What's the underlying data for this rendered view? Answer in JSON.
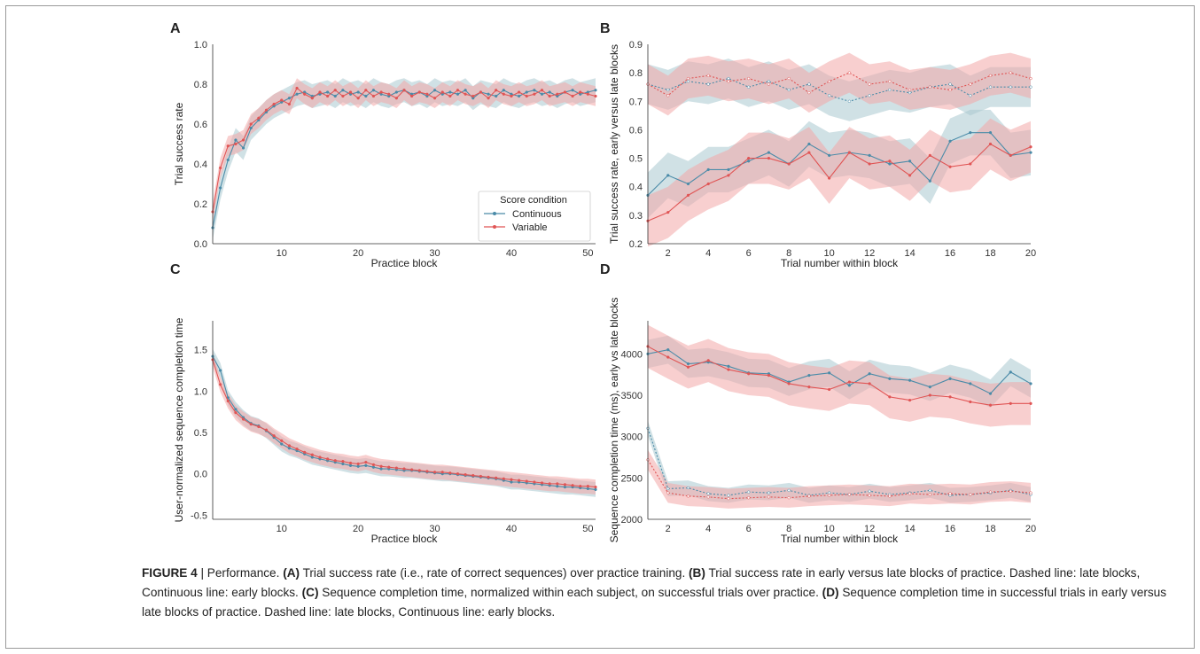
{
  "colors": {
    "continuous": "#4a8ba8",
    "continuous_band": "#a9c8d0",
    "variable": "#e05555",
    "variable_band": "#f2a8a8",
    "axis": "#333333"
  },
  "panels": {
    "A": "A",
    "B": "B",
    "C": "C",
    "D": "D"
  },
  "caption": {
    "figure_label": "FIGURE 4",
    "separator": "|",
    "title": "Performance.",
    "a_label": "(A)",
    "a_text": "Trial success rate (i.e., rate of correct sequences) over practice training.",
    "b_label": "(B)",
    "b_text": "Trial success rate in early versus late blocks of practice. Dashed line: late blocks, Continuous line: early blocks.",
    "c_label": "(C)",
    "c_text": "Sequence completion time, normalized within each subject, on successful trials over practice.",
    "d_label": "(D)",
    "d_text": "Sequence completion time in successful trials in early versus late blocks of practice. Dashed line: late blocks, Continuous line: early blocks."
  },
  "chart_data": [
    {
      "panel": "A",
      "type": "line",
      "xlabel": "Practice block",
      "ylabel": "Trial success rate",
      "xlim": [
        1,
        51
      ],
      "ylim": [
        0.0,
        1.0
      ],
      "xticks": [
        10,
        20,
        30,
        40,
        50
      ],
      "yticks": [
        0.0,
        0.2,
        0.4,
        0.6,
        0.8,
        1.0
      ],
      "ytick_labels": [
        "0.0",
        "0.2",
        "0.4",
        "0.6",
        "0.8",
        "1.0"
      ],
      "legend": {
        "title": "Score condition",
        "position": "lower-right"
      },
      "series": [
        {
          "name": "Continuous",
          "color_key": "continuous",
          "style": "solid",
          "x": [
            1,
            2,
            3,
            4,
            5,
            6,
            7,
            8,
            9,
            10,
            11,
            12,
            13,
            14,
            15,
            16,
            17,
            18,
            19,
            20,
            21,
            22,
            23,
            24,
            25,
            26,
            27,
            28,
            29,
            30,
            31,
            32,
            33,
            34,
            35,
            36,
            37,
            38,
            39,
            40,
            41,
            42,
            43,
            44,
            45,
            46,
            47,
            48,
            49,
            50,
            51
          ],
          "y": [
            0.08,
            0.28,
            0.42,
            0.52,
            0.48,
            0.58,
            0.62,
            0.66,
            0.69,
            0.71,
            0.73,
            0.75,
            0.76,
            0.74,
            0.75,
            0.76,
            0.74,
            0.77,
            0.75,
            0.76,
            0.74,
            0.77,
            0.75,
            0.74,
            0.76,
            0.77,
            0.75,
            0.76,
            0.74,
            0.77,
            0.75,
            0.76,
            0.75,
            0.77,
            0.73,
            0.76,
            0.75,
            0.74,
            0.77,
            0.75,
            0.74,
            0.76,
            0.77,
            0.75,
            0.76,
            0.74,
            0.76,
            0.77,
            0.75,
            0.76,
            0.77
          ],
          "band": 0.06
        },
        {
          "name": "Variable",
          "color_key": "variable",
          "style": "solid",
          "x": [
            1,
            2,
            3,
            4,
            5,
            6,
            7,
            8,
            9,
            10,
            11,
            12,
            13,
            14,
            15,
            16,
            17,
            18,
            19,
            20,
            21,
            22,
            23,
            24,
            25,
            26,
            27,
            28,
            29,
            30,
            31,
            32,
            33,
            34,
            35,
            36,
            37,
            38,
            39,
            40,
            41,
            42,
            43,
            44,
            45,
            46,
            47,
            48,
            49,
            50,
            51
          ],
          "y": [
            0.16,
            0.38,
            0.49,
            0.5,
            0.52,
            0.6,
            0.63,
            0.67,
            0.7,
            0.72,
            0.7,
            0.78,
            0.75,
            0.73,
            0.76,
            0.74,
            0.77,
            0.74,
            0.76,
            0.73,
            0.77,
            0.74,
            0.76,
            0.75,
            0.73,
            0.77,
            0.74,
            0.76,
            0.75,
            0.73,
            0.76,
            0.74,
            0.77,
            0.75,
            0.74,
            0.76,
            0.73,
            0.77,
            0.75,
            0.74,
            0.76,
            0.74,
            0.75,
            0.77,
            0.74,
            0.75,
            0.76,
            0.74,
            0.76,
            0.75,
            0.74
          ],
          "band": 0.05
        }
      ]
    },
    {
      "panel": "B",
      "type": "line",
      "xlabel": "Trial number within block",
      "ylabel": "Trial success rate, early versus late blocks",
      "xlim": [
        1,
        20
      ],
      "ylim": [
        0.2,
        0.9
      ],
      "xticks": [
        2,
        4,
        6,
        8,
        10,
        12,
        14,
        16,
        18,
        20
      ],
      "yticks": [
        0.2,
        0.3,
        0.4,
        0.5,
        0.6,
        0.7,
        0.8,
        0.9
      ],
      "ytick_labels": [
        "0.2",
        "0.3",
        "0.4",
        "0.5",
        "0.6",
        "0.7",
        "0.8",
        "0.9"
      ],
      "series": [
        {
          "name": "Continuous",
          "color_key": "continuous",
          "style": "dashed",
          "x": [
            1,
            2,
            3,
            4,
            5,
            6,
            7,
            8,
            9,
            10,
            11,
            12,
            13,
            14,
            15,
            16,
            17,
            18,
            19,
            20
          ],
          "y": [
            0.76,
            0.74,
            0.77,
            0.76,
            0.78,
            0.75,
            0.77,
            0.74,
            0.76,
            0.72,
            0.7,
            0.72,
            0.74,
            0.73,
            0.75,
            0.76,
            0.72,
            0.75,
            0.75,
            0.75
          ],
          "band": 0.07
        },
        {
          "name": "Variable",
          "color_key": "variable",
          "style": "dashed",
          "x": [
            1,
            2,
            3,
            4,
            5,
            6,
            7,
            8,
            9,
            10,
            11,
            12,
            13,
            14,
            15,
            16,
            17,
            18,
            19,
            20
          ],
          "y": [
            0.76,
            0.72,
            0.78,
            0.79,
            0.77,
            0.78,
            0.76,
            0.78,
            0.73,
            0.77,
            0.8,
            0.76,
            0.77,
            0.74,
            0.75,
            0.74,
            0.76,
            0.79,
            0.8,
            0.78
          ],
          "band": 0.07
        },
        {
          "name": "Continuous",
          "color_key": "continuous",
          "style": "solid",
          "x": [
            1,
            2,
            3,
            4,
            5,
            6,
            7,
            8,
            9,
            10,
            11,
            12,
            13,
            14,
            15,
            16,
            17,
            18,
            19,
            20
          ],
          "y": [
            0.37,
            0.44,
            0.41,
            0.46,
            0.46,
            0.49,
            0.52,
            0.48,
            0.55,
            0.51,
            0.52,
            0.51,
            0.48,
            0.49,
            0.42,
            0.56,
            0.59,
            0.59,
            0.51,
            0.52
          ],
          "band": 0.08
        },
        {
          "name": "Variable",
          "color_key": "variable",
          "style": "solid",
          "x": [
            1,
            2,
            3,
            4,
            5,
            6,
            7,
            8,
            9,
            10,
            11,
            12,
            13,
            14,
            15,
            16,
            17,
            18,
            19,
            20
          ],
          "y": [
            0.28,
            0.31,
            0.37,
            0.41,
            0.44,
            0.5,
            0.5,
            0.48,
            0.52,
            0.43,
            0.52,
            0.48,
            0.49,
            0.44,
            0.51,
            0.47,
            0.48,
            0.55,
            0.51,
            0.54
          ],
          "band": 0.09
        }
      ]
    },
    {
      "panel": "C",
      "type": "line",
      "xlabel": "Practice block",
      "ylabel": "User-normalized sequence completion time",
      "xlim": [
        1,
        51
      ],
      "ylim": [
        -0.55,
        1.85
      ],
      "xticks": [
        10,
        20,
        30,
        40,
        50
      ],
      "yticks": [
        -0.5,
        0.0,
        0.5,
        1.0,
        1.5
      ],
      "ytick_labels": [
        "-0.5",
        "0.0",
        "0.5",
        "1.0",
        "1.5"
      ],
      "series": [
        {
          "name": "Continuous",
          "color_key": "continuous",
          "style": "solid",
          "x": [
            1,
            2,
            3,
            4,
            5,
            6,
            7,
            8,
            9,
            10,
            11,
            12,
            13,
            14,
            15,
            16,
            17,
            18,
            19,
            20,
            21,
            22,
            23,
            24,
            25,
            26,
            27,
            28,
            29,
            30,
            31,
            32,
            33,
            34,
            35,
            36,
            37,
            38,
            39,
            40,
            41,
            42,
            43,
            44,
            45,
            46,
            47,
            48,
            49,
            50,
            51
          ],
          "y": [
            1.42,
            1.25,
            0.92,
            0.78,
            0.68,
            0.61,
            0.58,
            0.52,
            0.44,
            0.36,
            0.31,
            0.28,
            0.24,
            0.2,
            0.18,
            0.16,
            0.14,
            0.12,
            0.1,
            0.09,
            0.1,
            0.08,
            0.06,
            0.06,
            0.05,
            0.04,
            0.04,
            0.03,
            0.02,
            0.01,
            0.0,
            0.0,
            -0.01,
            -0.02,
            -0.03,
            -0.04,
            -0.05,
            -0.06,
            -0.08,
            -0.1,
            -0.1,
            -0.11,
            -0.12,
            -0.13,
            -0.14,
            -0.15,
            -0.16,
            -0.16,
            -0.17,
            -0.18,
            -0.19
          ],
          "band": 0.09
        },
        {
          "name": "Variable",
          "color_key": "variable",
          "style": "solid",
          "x": [
            1,
            2,
            3,
            4,
            5,
            6,
            7,
            8,
            9,
            10,
            11,
            12,
            13,
            14,
            15,
            16,
            17,
            18,
            19,
            20,
            21,
            22,
            23,
            24,
            25,
            26,
            27,
            28,
            29,
            30,
            31,
            32,
            33,
            34,
            35,
            36,
            37,
            38,
            39,
            40,
            41,
            42,
            43,
            44,
            45,
            46,
            47,
            48,
            49,
            50,
            51
          ],
          "y": [
            1.38,
            1.08,
            0.88,
            0.74,
            0.66,
            0.6,
            0.57,
            0.53,
            0.46,
            0.4,
            0.34,
            0.3,
            0.26,
            0.23,
            0.2,
            0.18,
            0.16,
            0.15,
            0.13,
            0.12,
            0.14,
            0.11,
            0.09,
            0.08,
            0.07,
            0.06,
            0.05,
            0.04,
            0.03,
            0.02,
            0.02,
            0.01,
            0.0,
            -0.01,
            -0.02,
            -0.03,
            -0.04,
            -0.05,
            -0.06,
            -0.07,
            -0.08,
            -0.09,
            -0.1,
            -0.11,
            -0.12,
            -0.12,
            -0.13,
            -0.14,
            -0.15,
            -0.15,
            -0.16
          ],
          "band": 0.09
        }
      ]
    },
    {
      "panel": "D",
      "type": "line",
      "xlabel": "Trial number within block",
      "ylabel": "Sequence completion time (ms), early vs late blocks",
      "xlim": [
        1,
        20
      ],
      "ylim": [
        2000,
        4400
      ],
      "xticks": [
        2,
        4,
        6,
        8,
        10,
        12,
        14,
        16,
        18,
        20
      ],
      "yticks": [
        2000,
        2500,
        3000,
        3500,
        4000
      ],
      "ytick_labels": [
        "2000",
        "2500",
        "3000",
        "3500",
        "4000"
      ],
      "series": [
        {
          "name": "Continuous",
          "color_key": "continuous",
          "style": "solid",
          "x": [
            1,
            2,
            3,
            4,
            5,
            6,
            7,
            8,
            9,
            10,
            11,
            12,
            13,
            14,
            15,
            16,
            17,
            18,
            19,
            20
          ],
          "y": [
            4000,
            4050,
            3880,
            3900,
            3850,
            3770,
            3760,
            3660,
            3740,
            3770,
            3620,
            3760,
            3700,
            3680,
            3600,
            3700,
            3640,
            3520,
            3780,
            3640
          ],
          "band": 170
        },
        {
          "name": "Variable",
          "color_key": "variable",
          "style": "solid",
          "x": [
            1,
            2,
            3,
            4,
            5,
            6,
            7,
            8,
            9,
            10,
            11,
            12,
            13,
            14,
            15,
            16,
            17,
            18,
            19,
            20
          ],
          "y": [
            4090,
            3960,
            3840,
            3920,
            3810,
            3760,
            3740,
            3640,
            3600,
            3570,
            3660,
            3640,
            3480,
            3440,
            3500,
            3480,
            3420,
            3380,
            3400,
            3400
          ],
          "band": 260
        },
        {
          "name": "Continuous",
          "color_key": "continuous",
          "style": "dashed",
          "x": [
            1,
            2,
            3,
            4,
            5,
            6,
            7,
            8,
            9,
            10,
            11,
            12,
            13,
            14,
            15,
            16,
            17,
            18,
            19,
            20
          ],
          "y": [
            3100,
            2370,
            2380,
            2310,
            2290,
            2330,
            2320,
            2350,
            2290,
            2320,
            2300,
            2340,
            2300,
            2320,
            2350,
            2290,
            2300,
            2320,
            2350,
            2300
          ],
          "band": 90
        },
        {
          "name": "Variable",
          "color_key": "variable",
          "style": "dashed",
          "x": [
            1,
            2,
            3,
            4,
            5,
            6,
            7,
            8,
            9,
            10,
            11,
            12,
            13,
            14,
            15,
            16,
            17,
            18,
            19,
            20
          ],
          "y": [
            2720,
            2320,
            2280,
            2270,
            2250,
            2260,
            2270,
            2260,
            2280,
            2290,
            2300,
            2290,
            2280,
            2310,
            2300,
            2310,
            2300,
            2330,
            2340,
            2320
          ],
          "band": 120
        }
      ]
    }
  ]
}
